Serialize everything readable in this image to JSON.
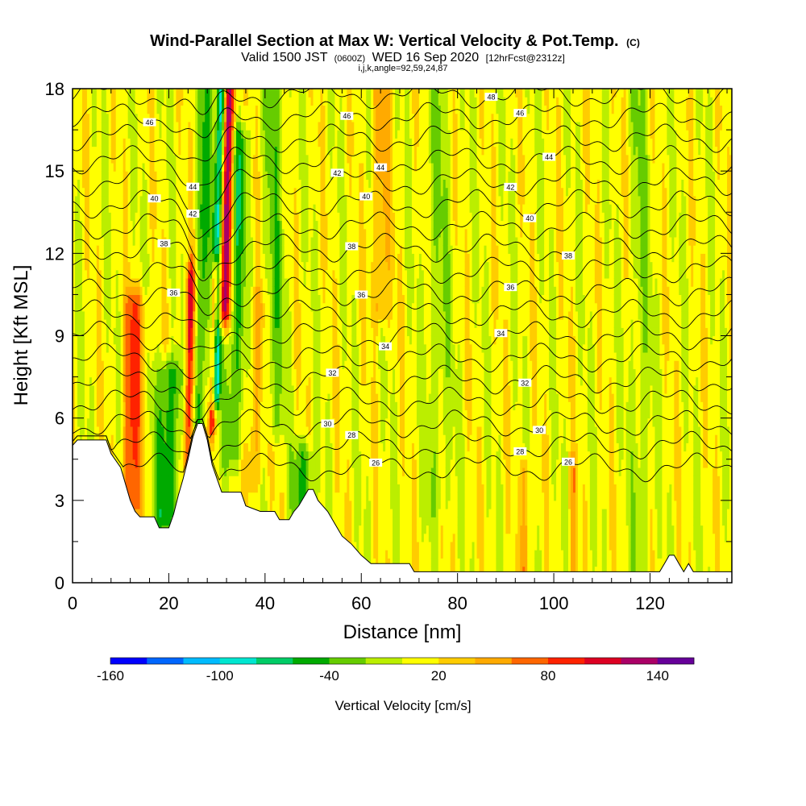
{
  "title": {
    "main": "Wind-Parallel Section at Max W: Vertical Velocity & Pot.Temp.",
    "main_suffix": "(C)",
    "valid_prefix": "Valid 1500 JST",
    "valid_utc": "(0600Z)",
    "valid_date": "WED 16 Sep 2020",
    "forecast": "[12hrFcst@2312z]",
    "params": "i,j,k,angle=92,59,24,87"
  },
  "chart_data": {
    "type": "heatmap",
    "xlabel": "Distance [nm]",
    "ylabel": "Height [Kft MSL]",
    "xlim": [
      0,
      137
    ],
    "ylim": [
      0,
      18
    ],
    "x_ticks": [
      "0",
      "20",
      "40",
      "60",
      "80",
      "100",
      "120"
    ],
    "y_ticks": [
      "0",
      "3",
      "6",
      "9",
      "12",
      "15",
      "18"
    ],
    "colorbar": {
      "label": "Vertical Velocity [cm/s]",
      "range": [
        -160,
        160
      ],
      "step": 20,
      "tick_labels": [
        "-160",
        "-100",
        "-40",
        "20",
        "80",
        "140"
      ],
      "colors": [
        "#0000ff",
        "#0066ff",
        "#00bbff",
        "#00e6d0",
        "#00cc66",
        "#00aa00",
        "#66cc00",
        "#bbee00",
        "#ffff00",
        "#ffcc00",
        "#ffaa00",
        "#ff6600",
        "#ff2200",
        "#dd0022",
        "#aa0066",
        "#660099"
      ]
    },
    "terrain_kft": [
      [
        0,
        5.0
      ],
      [
        1,
        5.2
      ],
      [
        7,
        5.2
      ],
      [
        8,
        4.7
      ],
      [
        10,
        4.2
      ],
      [
        12,
        3.0
      ],
      [
        13,
        2.6
      ],
      [
        14,
        2.4
      ],
      [
        17,
        2.4
      ],
      [
        18,
        2.0
      ],
      [
        20,
        2.0
      ],
      [
        21,
        2.5
      ],
      [
        22,
        3.2
      ],
      [
        23,
        3.8
      ],
      [
        24,
        4.5
      ],
      [
        25,
        5.3
      ],
      [
        26,
        5.8
      ],
      [
        27,
        5.8
      ],
      [
        28,
        5.2
      ],
      [
        29,
        4.3
      ],
      [
        30,
        3.8
      ],
      [
        31,
        3.3
      ],
      [
        35,
        3.3
      ],
      [
        36,
        2.8
      ],
      [
        39,
        2.6
      ],
      [
        42,
        2.6
      ],
      [
        43,
        2.3
      ],
      [
        45,
        2.3
      ],
      [
        46,
        2.6
      ],
      [
        47,
        2.8
      ],
      [
        49,
        3.4
      ],
      [
        50,
        3.4
      ],
      [
        51,
        3.0
      ],
      [
        53,
        2.6
      ],
      [
        55,
        2.0
      ],
      [
        56,
        1.7
      ],
      [
        58,
        1.4
      ],
      [
        60,
        1.0
      ],
      [
        62,
        0.7
      ],
      [
        70,
        0.7
      ],
      [
        71,
        0.4
      ],
      [
        122,
        0.4
      ],
      [
        123,
        0.7
      ],
      [
        124,
        1.0
      ],
      [
        125,
        1.0
      ],
      [
        126,
        0.7
      ],
      [
        127,
        0.4
      ],
      [
        128,
        0.7
      ],
      [
        129,
        0.4
      ],
      [
        137,
        0.4
      ]
    ],
    "w_features": [
      {
        "x": 12.5,
        "z0": 3.0,
        "z1": 10.0,
        "w": 75,
        "sx": 2.0
      },
      {
        "x": 20.0,
        "z0": 2.5,
        "z1": 7.5,
        "w": -65,
        "sx": 2.5
      },
      {
        "x": 24.0,
        "z0": 4.5,
        "z1": 11.0,
        "w": 95,
        "sx": 0.9
      },
      {
        "x": 26.5,
        "z0": 6.0,
        "z1": 18.0,
        "w": -55,
        "sx": 1.2
      },
      {
        "x": 29.0,
        "z0": 6.0,
        "z1": 11.0,
        "w": 120,
        "sx": 0.7
      },
      {
        "x": 31.0,
        "z0": 10.0,
        "z1": 18.0,
        "w": 140,
        "sx": 1.3
      },
      {
        "x": 29.5,
        "z0": 7.0,
        "z1": 18.0,
        "w": -135,
        "sx": 1.0
      },
      {
        "x": 33.5,
        "z0": 5.0,
        "z1": 16.0,
        "w": -55,
        "sx": 1.8
      },
      {
        "x": 38.0,
        "z0": 4.0,
        "z1": 10.0,
        "w": 40,
        "sx": 1.5
      },
      {
        "x": 42.0,
        "z0": 6.0,
        "z1": 18.0,
        "w": -35,
        "sx": 2.0
      },
      {
        "x": 48.0,
        "z0": 2.5,
        "z1": 4.5,
        "w": -55,
        "sx": 2.0
      },
      {
        "x": 64.0,
        "z0": 10.0,
        "z1": 18.0,
        "w": 40,
        "sx": 2.0
      },
      {
        "x": 76.0,
        "z0": 3.0,
        "z1": 18.0,
        "w": -25,
        "sx": 2.5
      },
      {
        "x": 94.0,
        "z0": 0.5,
        "z1": 4.0,
        "w": 55,
        "sx": 0.8
      },
      {
        "x": 104.0,
        "z0": 0.5,
        "z1": 4.0,
        "w": 40,
        "sx": 0.8
      },
      {
        "x": 118.0,
        "z0": 0.5,
        "z1": 18.0,
        "w": -25,
        "sx": 2.0
      }
    ],
    "isentropes": [
      {
        "z": 4.2,
        "label": "26",
        "lx": [
          63,
          103
        ]
      },
      {
        "z": 5.0,
        "label": "28",
        "lx": [
          58,
          93
        ]
      },
      {
        "z": 5.8,
        "label": "30",
        "lx": [
          53,
          97
        ]
      },
      {
        "z": 6.6,
        "label": "",
        "lx": []
      },
      {
        "z": 7.4,
        "label": "32",
        "lx": [
          54,
          94
        ]
      },
      {
        "z": 8.2,
        "label": "",
        "lx": []
      },
      {
        "z": 9.0,
        "label": "34",
        "lx": [
          65,
          89
        ]
      },
      {
        "z": 9.8,
        "label": "",
        "lx": []
      },
      {
        "z": 10.6,
        "label": "36",
        "lx": [
          21,
          60,
          91
        ]
      },
      {
        "z": 11.4,
        "label": "",
        "lx": []
      },
      {
        "z": 12.2,
        "label": "38",
        "lx": [
          19,
          58,
          103
        ]
      },
      {
        "z": 13.0,
        "label": "",
        "lx": []
      },
      {
        "z": 13.8,
        "label": "40",
        "lx": [
          17,
          61,
          95
        ]
      },
      {
        "z": 14.6,
        "label": "42",
        "lx": [
          25,
          55,
          91
        ]
      },
      {
        "z": 15.4,
        "label": "44",
        "lx": [
          25,
          64,
          99
        ]
      },
      {
        "z": 16.2,
        "label": "",
        "lx": []
      },
      {
        "z": 17.0,
        "label": "46",
        "lx": [
          16,
          57,
          93
        ]
      },
      {
        "z": 17.8,
        "label": "48",
        "lx": [
          87
        ]
      }
    ]
  }
}
